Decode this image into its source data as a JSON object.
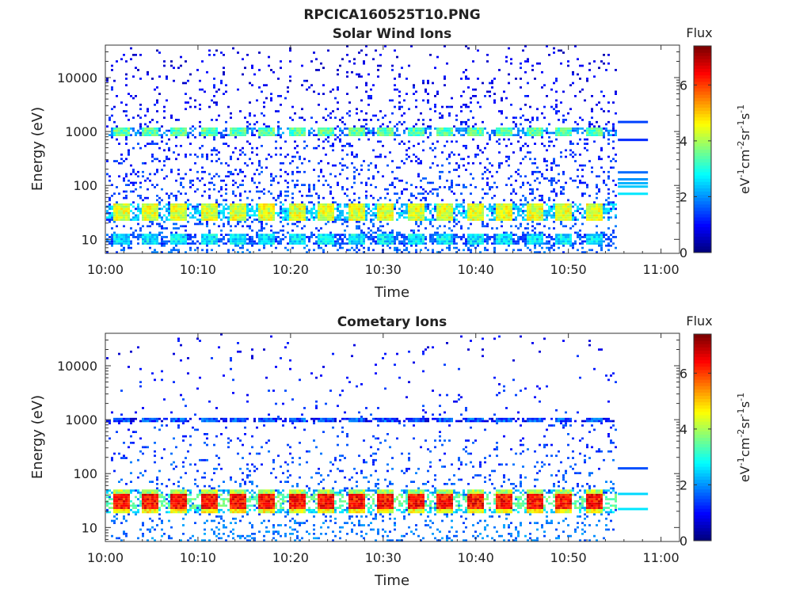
{
  "figure": {
    "title": "RPCICA160525T10.PNG"
  },
  "colors": {
    "colormap": "jet",
    "background": "#ffffff",
    "axes": "#333333"
  },
  "chart_data": [
    {
      "type": "heatmap",
      "title": "Solar Wind Ions",
      "xlabel": "Time",
      "ylabel": "Energy (eV)",
      "x_ticks": [
        "10:00",
        "10:10",
        "10:20",
        "10:30",
        "10:40",
        "10:50",
        "11:00"
      ],
      "x_range": [
        "10:00",
        "11:02"
      ],
      "y_scale": "log",
      "y_ticks": [
        "10",
        "100",
        "1000",
        "10000"
      ],
      "y_range": [
        5.5,
        40000
      ],
      "data_end_time": "10:55",
      "colorbar": {
        "label": "Flux",
        "unit_label": "eV-1cm-2sr-1s-1",
        "ticks": [
          "0",
          "2",
          "4",
          "6"
        ],
        "range": [
          0,
          7.4
        ]
      },
      "sweep_starts_min": [
        1.5,
        4.6,
        7.8,
        11.0,
        14.2,
        17.4,
        20.6,
        23.8,
        27.0,
        30.2,
        33.4,
        36.6,
        39.8,
        43.0,
        46.2,
        49.4,
        52.6
      ],
      "bands": [
        {
          "e_min": 22,
          "e_max": 45,
          "flux": 4.4
        },
        {
          "e_min": 800,
          "e_max": 1200,
          "flux": 3.4
        },
        {
          "e_min": 8,
          "e_max": 13,
          "flux": 2.6
        }
      ],
      "background_flux": 1.8,
      "trailing_lines": [
        {
          "energy": 1500,
          "flux": 1.4
        },
        {
          "energy": 700,
          "flux": 1.2
        },
        {
          "energy": 175,
          "flux": 1.7
        },
        {
          "energy": 130,
          "flux": 2.0
        },
        {
          "energy": 110,
          "flux": 2.2
        },
        {
          "energy": 95,
          "flux": 2.4
        },
        {
          "energy": 70,
          "flux": 2.6
        }
      ]
    },
    {
      "type": "heatmap",
      "title": "Cometary Ions",
      "xlabel": "Time",
      "ylabel": "Energy (eV)",
      "x_ticks": [
        "10:00",
        "10:10",
        "10:20",
        "10:30",
        "10:40",
        "10:50",
        "11:00"
      ],
      "x_range": [
        "10:00",
        "11:02"
      ],
      "y_scale": "log",
      "y_ticks": [
        "10",
        "100",
        "1000",
        "10000"
      ],
      "y_range": [
        5.5,
        40000
      ],
      "data_end_time": "10:55",
      "colorbar": {
        "label": "Flux",
        "unit_label": "eV-1cm-2sr-1s-1",
        "ticks": [
          "0",
          "2",
          "4",
          "6"
        ],
        "range": [
          0,
          7.4
        ]
      },
      "sweep_starts_min": [
        1.5,
        4.6,
        7.8,
        11.0,
        14.2,
        17.4,
        20.6,
        23.8,
        27.0,
        30.2,
        33.4,
        36.6,
        39.8,
        43.0,
        46.2,
        49.4,
        52.6
      ],
      "bands": [
        {
          "e_min": 22,
          "e_max": 42,
          "flux": 6.4
        },
        {
          "e_min": 18,
          "e_max": 22,
          "flux": 4.6
        },
        {
          "e_min": 42,
          "e_max": 50,
          "flux": 4.0
        },
        {
          "e_min": 900,
          "e_max": 1100,
          "flux": 1.5
        }
      ],
      "background_flux": 2.0,
      "trailing_lines": [
        {
          "energy": 125,
          "flux": 1.5
        },
        {
          "energy": 42,
          "flux": 2.5
        },
        {
          "energy": 22,
          "flux": 2.6
        }
      ]
    }
  ]
}
